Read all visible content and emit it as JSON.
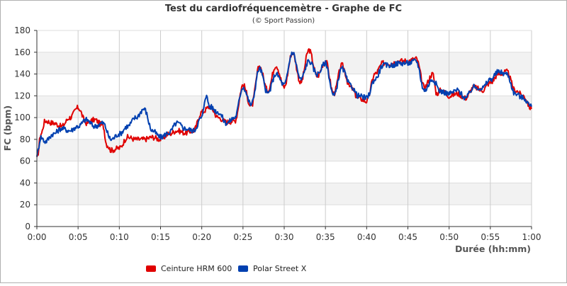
{
  "chart_data": {
    "type": "line",
    "title": "Test du cardiofréquencemètre - Graphe de FC",
    "subtitle": "(© Sport Passion)",
    "xlabel": "Durée (hh:mm)",
    "ylabel": "FC (bpm)",
    "xlim": [
      0,
      60
    ],
    "ylim": [
      0,
      180
    ],
    "x_tick_labels": [
      "0:00",
      "0:05",
      "0:10",
      "0:15",
      "0:20",
      "0:25",
      "0:30",
      "0:35",
      "0:40",
      "0:45",
      "0:50",
      "0:55",
      "1:00"
    ],
    "y_tick_labels": [
      "0",
      "20",
      "40",
      "60",
      "80",
      "100",
      "120",
      "140",
      "160",
      "180"
    ],
    "grid": true,
    "legend_position": "bottom-left",
    "series": [
      {
        "name": "Ceinture HRM 600",
        "color": "#e00000",
        "x": [
          0,
          0.5,
          1,
          2,
          3,
          4,
          5,
          6,
          7,
          8,
          8.5,
          9,
          10,
          11,
          12,
          13,
          14,
          15,
          16,
          17,
          18,
          19,
          20,
          21,
          22,
          23,
          24,
          25,
          26,
          27,
          28,
          29,
          30,
          31,
          32,
          33,
          34,
          35,
          36,
          37,
          38,
          39,
          40,
          41,
          42,
          43,
          44,
          45,
          46,
          47,
          48,
          48.5,
          49,
          50,
          51,
          52,
          53,
          54,
          55,
          56,
          57,
          58,
          59,
          60
        ],
        "y": [
          62,
          85,
          97,
          95,
          92,
          100,
          109,
          95,
          98,
          93,
          75,
          70,
          72,
          82,
          80,
          80,
          82,
          80,
          85,
          88,
          86,
          88,
          105,
          110,
          100,
          96,
          97,
          130,
          110,
          147,
          125,
          148,
          128,
          160,
          132,
          162,
          138,
          152,
          122,
          148,
          128,
          118,
          115,
          140,
          150,
          150,
          152,
          152,
          154,
          128,
          140,
          122,
          125,
          120,
          122,
          118,
          128,
          125,
          132,
          140,
          142,
          125,
          120,
          108
        ],
        "style": "solid"
      },
      {
        "name": "Polar Street X",
        "color": "#0040b0",
        "x": [
          0,
          0.5,
          1,
          2,
          3,
          4,
          5,
          6,
          7,
          8,
          9,
          10,
          11,
          12,
          13,
          14,
          15,
          16,
          17,
          18,
          19,
          20,
          20.5,
          21,
          22,
          23,
          24,
          25,
          26,
          27,
          28,
          29,
          30,
          31,
          32,
          33,
          34,
          35,
          36,
          37,
          38,
          39,
          40,
          41,
          42,
          43,
          44,
          45,
          46,
          47,
          48,
          49,
          50,
          51,
          52,
          53,
          54,
          55,
          56,
          57,
          58,
          59,
          60
        ],
        "y": [
          66,
          82,
          78,
          85,
          90,
          88,
          92,
          98,
          92,
          95,
          80,
          85,
          92,
          100,
          108,
          88,
          82,
          86,
          95,
          90,
          88,
          100,
          120,
          110,
          105,
          95,
          100,
          128,
          112,
          145,
          122,
          140,
          130,
          160,
          135,
          152,
          140,
          150,
          120,
          145,
          130,
          120,
          118,
          135,
          148,
          148,
          150,
          150,
          152,
          125,
          135,
          124,
          122,
          125,
          118,
          128,
          127,
          135,
          142,
          140,
          122,
          118,
          110
        ],
        "style": "solid"
      }
    ]
  }
}
